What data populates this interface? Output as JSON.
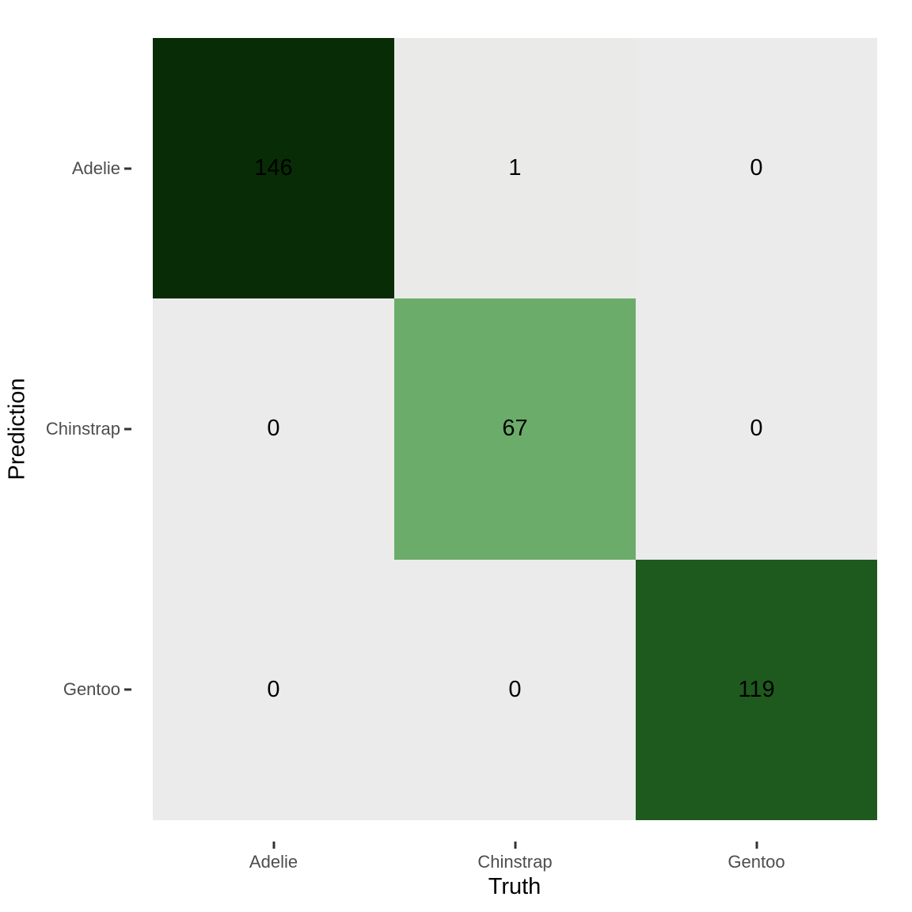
{
  "chart_data": {
    "type": "heatmap",
    "subtype": "confusion-matrix",
    "title": "",
    "xlabel": "Truth",
    "ylabel": "Prediction",
    "x_categories": [
      "Adelie",
      "Chinstrap",
      "Gentoo"
    ],
    "y_categories": [
      "Adelie",
      "Chinstrap",
      "Gentoo"
    ],
    "matrix": [
      [
        146,
        1,
        0
      ],
      [
        0,
        67,
        0
      ],
      [
        0,
        0,
        119
      ]
    ],
    "cell_colors": [
      [
        "#082C05",
        "#EAEBE9",
        "#EBEBEB"
      ],
      [
        "#EBEBEB",
        "#6CAC6B",
        "#EBEBEB"
      ],
      [
        "#EBEBEB",
        "#EBEBEB",
        "#1E5A1E"
      ]
    ],
    "value_range": [
      0,
      146
    ],
    "legend": "none",
    "grid": false,
    "colors": {
      "background": "#FFFFFF",
      "cell_text": "#000000",
      "tick_mark": "#333333",
      "tick_label": "#4D4D4D",
      "axis_title": "#000000"
    }
  }
}
